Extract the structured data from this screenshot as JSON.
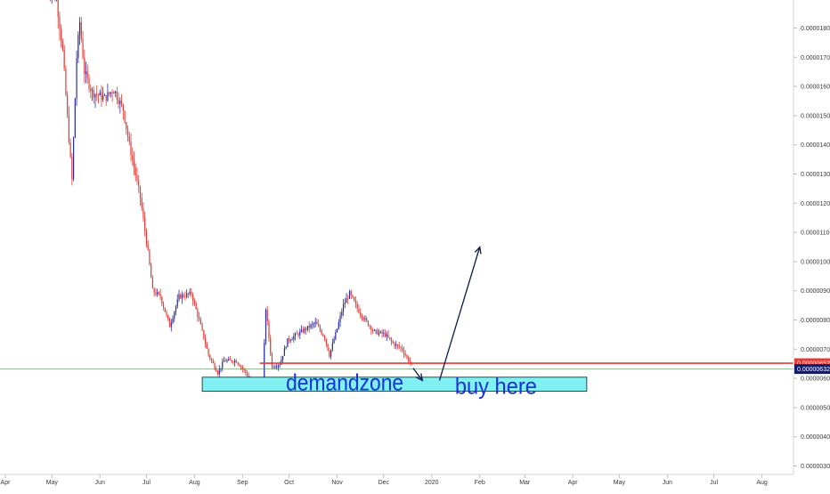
{
  "chart_data": {
    "type": "candlestick",
    "title": "",
    "xlabel": "",
    "ylabel": "",
    "ylim": [
      2.5e-06,
      1.94e-05
    ],
    "grid": false,
    "legend": "none",
    "x_ticks": [
      "Apr",
      "May",
      "Jun",
      "Jul",
      "Aug",
      "Sep",
      "Oct",
      "Nov",
      "Dec",
      "2020",
      "Feb",
      "Mar",
      "Apr",
      "May",
      "Jun",
      "Jul",
      "Aug"
    ],
    "y_ticks": [
      "0.00000300",
      "0.00000400",
      "0.00000500",
      "0.00000600",
      "0.00000700",
      "0.00000800",
      "0.00000900",
      "0.00001000",
      "0.00001100",
      "0.00001200",
      "0.00001300",
      "0.00001400",
      "0.00001500",
      "0.00001600",
      "0.00001700",
      "0.00001800"
    ],
    "y_tick_values": [
      3e-06,
      4e-06,
      5e-06,
      6e-06,
      7e-06,
      8e-06,
      9e-06,
      1e-05,
      1.1e-05,
      1.2e-05,
      1.3e-05,
      1.4e-05,
      1.5e-05,
      1.6e-05,
      1.7e-05,
      1.8e-05
    ],
    "price_keypoints": [
      [
        "2019-04-28",
        1.95e-05
      ],
      [
        "2019-05-04",
        1.9e-05
      ],
      [
        "2019-05-08",
        1.72e-05
      ],
      [
        "2019-05-12",
        1.42e-05
      ],
      [
        "2019-05-14",
        1.28e-05
      ],
      [
        "2019-05-17",
        1.7e-05
      ],
      [
        "2019-05-19",
        1.82e-05
      ],
      [
        "2019-05-22",
        1.65e-05
      ],
      [
        "2019-05-27",
        1.58e-05
      ],
      [
        "2019-06-04",
        1.56e-05
      ],
      [
        "2019-06-10",
        1.59e-05
      ],
      [
        "2019-06-16",
        1.52e-05
      ],
      [
        "2019-06-20",
        1.4e-05
      ],
      [
        "2019-06-27",
        1.22e-05
      ],
      [
        "2019-07-02",
        1.03e-05
      ],
      [
        "2019-07-05",
        9e-06
      ],
      [
        "2019-07-10",
        8.8e-06
      ],
      [
        "2019-07-16",
        7.8e-06
      ],
      [
        "2019-07-22",
        8.8e-06
      ],
      [
        "2019-07-30",
        8.9e-06
      ],
      [
        "2019-08-05",
        7.8e-06
      ],
      [
        "2019-08-10",
        6.8e-06
      ],
      [
        "2019-08-16",
        6.2e-06
      ],
      [
        "2019-08-20",
        6.6e-06
      ],
      [
        "2019-08-28",
        6.6e-06
      ],
      [
        "2019-09-03",
        6.2e-06
      ],
      [
        "2019-09-09",
        5.7e-06
      ],
      [
        "2019-09-14",
        5.9e-06
      ],
      [
        "2019-09-16",
        8.4e-06
      ],
      [
        "2019-09-20",
        6.4e-06
      ],
      [
        "2019-09-25",
        6.5e-06
      ],
      [
        "2019-09-30",
        7.3e-06
      ],
      [
        "2019-10-06",
        7.5e-06
      ],
      [
        "2019-10-12",
        7.7e-06
      ],
      [
        "2019-10-18",
        7.9e-06
      ],
      [
        "2019-10-24",
        7.4e-06
      ],
      [
        "2019-10-27",
        6.8e-06
      ],
      [
        "2019-11-01",
        7.7e-06
      ],
      [
        "2019-11-05",
        8.5e-06
      ],
      [
        "2019-11-09",
        8.9e-06
      ],
      [
        "2019-11-14",
        8.4e-06
      ],
      [
        "2019-11-19",
        8e-06
      ],
      [
        "2019-11-25",
        7.6e-06
      ],
      [
        "2019-12-02",
        7.5e-06
      ],
      [
        "2019-12-07",
        7.2e-06
      ],
      [
        "2019-12-13",
        7e-06
      ],
      [
        "2019-12-16",
        6.7e-06
      ],
      [
        "2019-12-19",
        6.5e-06
      ]
    ],
    "last_price": "0.00000652",
    "last_price_value": 6.52e-06,
    "ref_price": "0.00000632",
    "ref_price_value": 6.32e-06,
    "colors": {
      "up": "#2a2e9c",
      "down": "#e53935",
      "line": "#e53935",
      "ref": "#2e7d32",
      "zone": "#80f0f2",
      "zone_text": "#1a33d6",
      "arrow": "#0d1b4a",
      "axis_text": "#3a3a3a"
    },
    "annotations": [
      {
        "id": "resistance",
        "type": "hline",
        "y": 6.52e-06,
        "x_start": "2019-09-12",
        "x_end": "2020-08-31"
      },
      {
        "id": "zone",
        "type": "zone",
        "text": "demandzone",
        "y_low": 5.56e-06,
        "y_high": 6.04e-06,
        "x_start": "2019-08-06",
        "x_end": "2020-04-10"
      },
      {
        "id": "buy",
        "type": "text",
        "text": "buy here",
        "x": "2020-01-16",
        "y": 5.78e-06
      },
      {
        "id": "arrow-down",
        "type": "arrow",
        "from": [
          "2019-12-20",
          6.35e-06
        ],
        "to": [
          "2019-12-26",
          5.93e-06
        ]
      },
      {
        "id": "arrow-up",
        "type": "arrow",
        "from": [
          "2020-01-06",
          5.93e-06
        ],
        "to": [
          "2020-02-01",
          1.05e-05
        ]
      }
    ]
  }
}
